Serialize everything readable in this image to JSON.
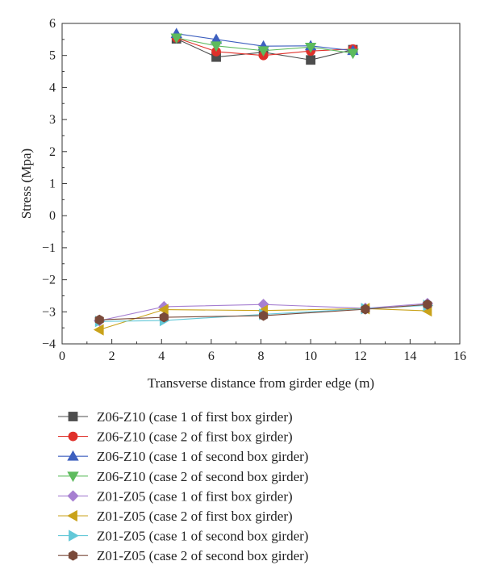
{
  "chart_data": {
    "type": "line",
    "xlabel": "Transverse distance from girder edge (m)",
    "ylabel": "Stress (Mpa)",
    "xlim": [
      0,
      16
    ],
    "ylim": [
      -4,
      6
    ],
    "xticks": [
      0,
      2,
      4,
      6,
      8,
      10,
      12,
      14,
      16
    ],
    "yticks": [
      6,
      5,
      4,
      3,
      2,
      1,
      0,
      -1,
      -2,
      -3,
      -4
    ],
    "ytick_labels": [
      "6",
      "5",
      "4",
      "3",
      "2",
      "1",
      "0",
      "−1",
      "−2",
      "−3",
      "−4"
    ],
    "grid": false,
    "legend_position": "below",
    "series": [
      {
        "name": "Z06-Z10 (case 1 of first box girder)",
        "color": "#4d4d4d",
        "marker": "square",
        "x": [
          4.6,
          6.2,
          8.1,
          10.0,
          11.7
        ],
        "y": [
          5.52,
          4.95,
          5.1,
          4.86,
          5.18
        ]
      },
      {
        "name": "Z06-Z10 (case 2 of first box girder)",
        "color": "#e0302a",
        "marker": "circle",
        "x": [
          4.6,
          6.2,
          8.1,
          10.0,
          11.7
        ],
        "y": [
          5.55,
          5.12,
          5.0,
          5.14,
          5.2
        ]
      },
      {
        "name": "Z06-Z10 (case 1 of second box girder)",
        "color": "#3d5fbf",
        "marker": "triangle-up",
        "x": [
          4.6,
          6.2,
          8.1,
          10.0,
          11.7
        ],
        "y": [
          5.68,
          5.5,
          5.29,
          5.3,
          5.15
        ]
      },
      {
        "name": "Z06-Z10 (case 2 of second box girder)",
        "color": "#5dbb5d",
        "marker": "triangle-down",
        "x": [
          4.6,
          6.2,
          8.1,
          10.0,
          11.7
        ],
        "y": [
          5.55,
          5.3,
          5.15,
          5.26,
          5.07
        ]
      },
      {
        "name": "Z01-Z05 (case 1 of first box girder)",
        "color": "#a67fd1",
        "marker": "diamond",
        "x": [
          1.5,
          4.1,
          8.1,
          12.2,
          14.7
        ],
        "y": [
          -3.28,
          -2.84,
          -2.77,
          -2.89,
          -2.74
        ]
      },
      {
        "name": "Z01-Z05 (case 2 of first box girder)",
        "color": "#c9a21a",
        "marker": "triangle-left",
        "x": [
          1.5,
          4.1,
          8.1,
          12.2,
          14.7
        ],
        "y": [
          -3.56,
          -2.93,
          -2.96,
          -2.9,
          -2.97
        ]
      },
      {
        "name": "Z01-Z05 (case 1 of second box girder)",
        "color": "#63c8d8",
        "marker": "triangle-right",
        "x": [
          1.5,
          4.1,
          8.1,
          12.2,
          14.7
        ],
        "y": [
          -3.3,
          -3.27,
          -3.08,
          -2.9,
          -2.8
        ]
      },
      {
        "name": "Z01-Z05 (case 2 of second box girder)",
        "color": "#7a4a3a",
        "marker": "hexagon",
        "x": [
          1.5,
          4.1,
          8.1,
          12.2,
          14.7
        ],
        "y": [
          -3.25,
          -3.17,
          -3.12,
          -2.92,
          -2.77
        ]
      }
    ]
  }
}
